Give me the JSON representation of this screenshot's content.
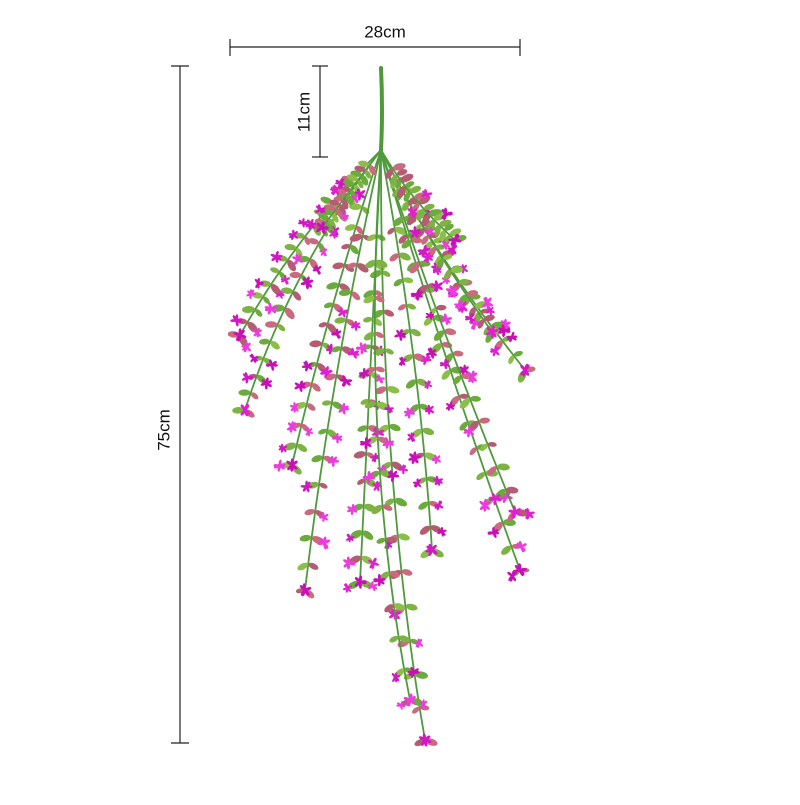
{
  "dimensions": {
    "width": "28cm",
    "stem": "11cm",
    "length": "75cm"
  }
}
